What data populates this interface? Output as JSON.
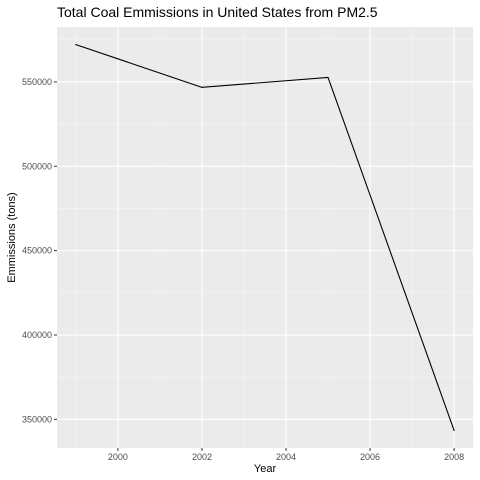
{
  "colors": {
    "panel_background": "#EBEBEB",
    "major_grid": "#FFFFFF",
    "minor_grid": "#F5F5F5",
    "line": "#000000",
    "tick_text": "#4D4D4D",
    "tick_mark": "#333333"
  },
  "chart_data": {
    "type": "line",
    "title": "Total Coal Emmissions in United States from PM2.5",
    "xlabel": "Year",
    "ylabel": "Emmissions (tons)",
    "x": [
      1999,
      2002,
      2005,
      2008
    ],
    "series": [
      {
        "values": [
          572126,
          546789,
          552675,
          343432
        ]
      }
    ],
    "xlim": [
      1998.55,
      2008.45
    ],
    "ylim": [
      332997,
      582560
    ],
    "x_ticks": [
      2000,
      2002,
      2004,
      2006,
      2008
    ],
    "x_tick_labels": [
      "2000",
      "2002",
      "2004",
      "2006",
      "2008"
    ],
    "y_ticks": [
      350000,
      400000,
      450000,
      500000,
      550000
    ],
    "y_tick_labels": [
      "350000",
      "400000",
      "450000",
      "500000",
      "550000"
    ],
    "grid": true,
    "legend": "none"
  }
}
